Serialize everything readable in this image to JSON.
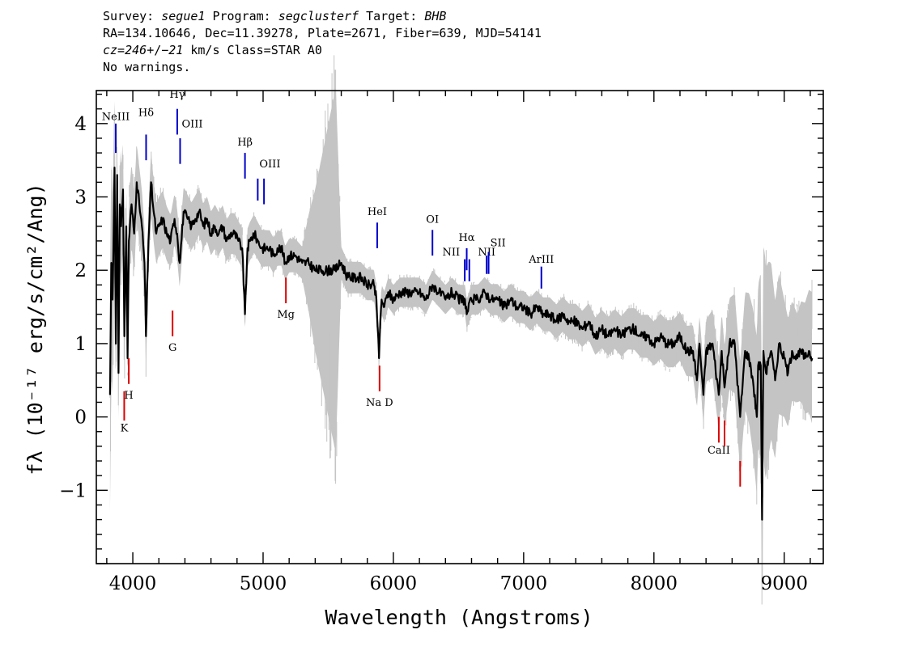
{
  "header": {
    "line1": {
      "survey_label": "Survey: ",
      "survey": "segue1",
      "program_label": " Program: ",
      "program": "segclusterf",
      "target_label": " Target: ",
      "target": "BHB"
    },
    "line2": "RA=134.10646, Dec=11.39278, Plate=2671, Fiber=639, MJD=54141",
    "line3": {
      "cz_label": "cz=",
      "cz": "246",
      "pm": "+/−",
      "err": "21",
      "rest": " km/s Class=STAR A0"
    },
    "line4": "No warnings."
  },
  "chart_data": {
    "type": "line",
    "xlabel": "Wavelength (Angstroms)",
    "ylabel": "fλ (10⁻¹⁷ erg/s/cm²/Ang)",
    "xlim": [
      3720,
      9300
    ],
    "ylim": [
      -2.0,
      4.45
    ],
    "grid": false,
    "x_ticks": [
      4000,
      5000,
      6000,
      7000,
      8000,
      9000
    ],
    "x_tick_labels": [
      "4000",
      "5000",
      "6000",
      "7000",
      "8000",
      "9000"
    ],
    "y_ticks": [
      -1,
      0,
      1,
      2,
      3,
      4
    ],
    "y_tick_labels": [
      "−1",
      "0",
      "1",
      "2",
      "3",
      "4"
    ],
    "series": [
      {
        "color": "#000000",
        "x": [
          3825,
          3835,
          3845,
          3860,
          3870,
          3880,
          3890,
          3900,
          3910,
          3925,
          3935,
          3950,
          3960,
          3970,
          3990,
          4010,
          4030,
          4050,
          4070,
          4090,
          4101,
          4120,
          4140,
          4160,
          4180,
          4200,
          4230,
          4260,
          4290,
          4320,
          4340,
          4360,
          4390,
          4420,
          4450,
          4480,
          4510,
          4540,
          4570,
          4600,
          4630,
          4660,
          4690,
          4720,
          4750,
          4780,
          4810,
          4840,
          4861,
          4880,
          4900,
          4930,
          4960,
          4990,
          5020,
          5050,
          5080,
          5110,
          5140,
          5170,
          5200,
          5250,
          5300,
          5350,
          5400,
          5450,
          5500,
          5550,
          5600,
          5650,
          5700,
          5750,
          5800,
          5850,
          5870,
          5880,
          5890,
          5900,
          5910,
          5930,
          5960,
          6000,
          6050,
          6100,
          6150,
          6200,
          6250,
          6300,
          6350,
          6400,
          6450,
          6500,
          6550,
          6563,
          6600,
          6650,
          6700,
          6750,
          6800,
          6850,
          6900,
          6950,
          7000,
          7050,
          7100,
          7150,
          7200,
          7250,
          7300,
          7350,
          7400,
          7450,
          7500,
          7550,
          7600,
          7650,
          7700,
          7750,
          7800,
          7850,
          7900,
          7950,
          8000,
          8050,
          8100,
          8150,
          8200,
          8250,
          8300,
          8330,
          8350,
          8380,
          8400,
          8450,
          8498,
          8520,
          8542,
          8580,
          8620,
          8662,
          8700,
          8730,
          8760,
          8790,
          8800,
          8820,
          8830,
          8840,
          8860,
          8880,
          8900,
          8930,
          8960,
          9000,
          9030,
          9060,
          9100,
          9130,
          9160,
          9190,
          9215
        ],
        "y": [
          0.3,
          2.1,
          1.6,
          3.4,
          1.0,
          3.3,
          0.6,
          2.9,
          2.6,
          3.1,
          1.1,
          2.6,
          0.8,
          2.4,
          2.9,
          2.5,
          3.2,
          2.9,
          2.6,
          2.1,
          1.1,
          2.4,
          3.2,
          2.8,
          2.5,
          2.6,
          2.7,
          2.5,
          2.4,
          2.7,
          2.5,
          2.1,
          2.8,
          2.7,
          2.6,
          2.7,
          2.8,
          2.6,
          2.7,
          2.5,
          2.6,
          2.5,
          2.6,
          2.4,
          2.5,
          2.5,
          2.4,
          2.3,
          1.4,
          2.3,
          2.4,
          2.5,
          2.4,
          2.3,
          2.3,
          2.3,
          2.2,
          2.3,
          2.3,
          2.1,
          2.2,
          2.2,
          2.1,
          2.1,
          2.0,
          2.0,
          2.0,
          2.0,
          2.1,
          1.9,
          1.9,
          1.9,
          1.8,
          1.8,
          1.6,
          1.2,
          0.8,
          1.3,
          1.6,
          1.5,
          1.7,
          1.6,
          1.7,
          1.7,
          1.7,
          1.7,
          1.6,
          1.8,
          1.7,
          1.6,
          1.7,
          1.6,
          1.6,
          1.4,
          1.6,
          1.6,
          1.7,
          1.6,
          1.6,
          1.5,
          1.6,
          1.5,
          1.5,
          1.4,
          1.5,
          1.4,
          1.4,
          1.3,
          1.4,
          1.3,
          1.3,
          1.2,
          1.3,
          1.1,
          1.2,
          1.1,
          1.2,
          1.1,
          1.2,
          1.2,
          1.1,
          1.1,
          1.0,
          1.1,
          1.0,
          1.0,
          1.1,
          0.9,
          0.9,
          0.5,
          1.0,
          0.3,
          0.9,
          1.0,
          0.3,
          0.9,
          0.4,
          1.0,
          1.0,
          0.0,
          0.9,
          0.8,
          0.5,
          0.0,
          0.7,
          0.7,
          -1.4,
          0.9,
          0.6,
          0.8,
          0.9,
          0.5,
          1.0,
          0.8,
          0.6,
          0.9,
          0.8,
          0.9,
          0.8,
          0.9,
          0.8
        ]
      }
    ],
    "noise": {
      "color": "#c4c4c4",
      "x": [
        3825,
        3880,
        3960,
        4100,
        4300,
        4600,
        5000,
        5300,
        5558,
        5600,
        6000,
        6500,
        7000,
        7500,
        8000,
        8300,
        8500,
        8700,
        8800,
        8850,
        8900,
        9000,
        9100,
        9215
      ],
      "half_width": [
        1.6,
        0.9,
        0.6,
        0.45,
        0.35,
        0.3,
        0.25,
        0.22,
        2.5,
        0.22,
        0.2,
        0.2,
        0.22,
        0.25,
        0.3,
        0.35,
        0.5,
        0.8,
        1.1,
        1.5,
        1.2,
        0.8,
        0.6,
        0.9
      ]
    },
    "emission_lines": [
      {
        "name": "NeIII",
        "wavelength": 3869,
        "y_bottom": 3.6,
        "y_top": 4.0,
        "label_y": 4.05,
        "label_side": "center"
      },
      {
        "name": "Hδ",
        "wavelength": 4102,
        "y_bottom": 3.5,
        "y_top": 3.85,
        "label_y": 4.1,
        "label_side": "center"
      },
      {
        "name": "Hγ",
        "wavelength": 4341,
        "y_bottom": 3.85,
        "y_top": 4.2,
        "label_y": 4.35,
        "label_side": "center"
      },
      {
        "name": "OIII",
        "wavelength": 4363,
        "y_bottom": 3.45,
        "y_top": 3.8,
        "label_y": 3.95,
        "label_side": "right"
      },
      {
        "name": "Hβ",
        "wavelength": 4861,
        "y_bottom": 3.25,
        "y_top": 3.6,
        "label_y": 3.7,
        "label_side": "center"
      },
      {
        "name": "OIII",
        "wavelength": 4959,
        "y_bottom": 2.95,
        "y_top": 3.25,
        "label_y": 3.4,
        "label_side": "right"
      },
      {
        "name": "",
        "wavelength": 5007,
        "y_bottom": 2.9,
        "y_top": 3.25,
        "label_y": 3.4,
        "label_side": "none"
      },
      {
        "name": "HeI",
        "wavelength": 5876,
        "y_bottom": 2.3,
        "y_top": 2.65,
        "label_y": 2.75,
        "label_side": "center"
      },
      {
        "name": "OI",
        "wavelength": 6300,
        "y_bottom": 2.2,
        "y_top": 2.55,
        "label_y": 2.65,
        "label_side": "center"
      },
      {
        "name": "NII",
        "wavelength": 6548,
        "y_bottom": 1.85,
        "y_top": 2.15,
        "label_y": 2.2,
        "label_side": "left"
      },
      {
        "name": "Hα",
        "wavelength": 6563,
        "y_bottom": 2.0,
        "y_top": 2.3,
        "label_y": 2.4,
        "label_side": "center"
      },
      {
        "name": "",
        "wavelength": 6583,
        "y_bottom": 1.85,
        "y_top": 2.15,
        "label_y": 2.2,
        "label_side": "none"
      },
      {
        "name": "NII",
        "wavelength": 6716,
        "y_bottom": 1.95,
        "y_top": 2.2,
        "label_y": 2.2,
        "label_side": "center"
      },
      {
        "name": "SII",
        "wavelength": 6731,
        "y_bottom": 1.95,
        "y_top": 2.25,
        "label_y": 2.33,
        "label_side": "right"
      },
      {
        "name": "ArIII",
        "wavelength": 7136,
        "y_bottom": 1.75,
        "y_top": 2.05,
        "label_y": 2.1,
        "label_side": "center"
      }
    ],
    "absorption_lines": [
      {
        "name": "K",
        "wavelength": 3934,
        "y_bottom": -0.05,
        "y_top": 0.35,
        "label_y": -0.2
      },
      {
        "name": "H",
        "wavelength": 3969,
        "y_bottom": 0.45,
        "y_top": 0.8,
        "label_y": 0.25
      },
      {
        "name": "G",
        "wavelength": 4305,
        "y_bottom": 1.1,
        "y_top": 1.45,
        "label_y": 0.9
      },
      {
        "name": "Mg",
        "wavelength": 5175,
        "y_bottom": 1.55,
        "y_top": 1.9,
        "label_y": 1.35
      },
      {
        "name": "Na D",
        "wavelength": 5894,
        "y_bottom": 0.35,
        "y_top": 0.7,
        "label_y": 0.15
      },
      {
        "name": "CaII",
        "wavelength": 8498,
        "y_bottom": -0.35,
        "y_top": 0.0,
        "label_y": -0.5
      },
      {
        "name": "",
        "wavelength": 8542,
        "y_bottom": -0.4,
        "y_top": -0.05,
        "label_y": -0.5
      },
      {
        "name": "",
        "wavelength": 8662,
        "y_bottom": -0.95,
        "y_top": -0.6,
        "label_y": -0.5
      }
    ],
    "colors": {
      "flux": "#000000",
      "noise": "#c4c4c4",
      "emission": "#0000cc",
      "absorption": "#dd0000",
      "axes": "#000000"
    }
  }
}
